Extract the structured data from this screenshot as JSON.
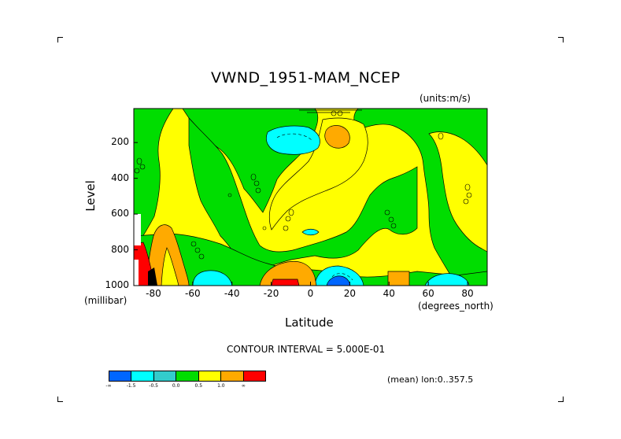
{
  "chart_data": {
    "type": "heatmap",
    "title": "VWND_1951-MAM_NCEP",
    "units": "(units:m/s)",
    "xlabel": "Latitude",
    "x_unit": "(degrees_north)",
    "ylabel": "Level",
    "y_unit": "(millibar)",
    "xlim": [
      -90,
      90
    ],
    "ylim": [
      1000,
      10
    ],
    "x_ticks": [
      "-80",
      "-60",
      "-40",
      "-20",
      "0",
      "20",
      "40",
      "60",
      "80"
    ],
    "x_tick_values": [
      -80,
      -60,
      -40,
      -20,
      0,
      20,
      40,
      60,
      80
    ],
    "y_ticks": [
      "200",
      "400",
      "600",
      "800",
      "1000"
    ],
    "y_tick_values": [
      200,
      400,
      600,
      800,
      1000
    ],
    "contour_interval_text": "CONTOUR INTERVAL = 5.000E-01",
    "mean_text": "(mean) lon:0..357.5",
    "colorbar": {
      "colors": [
        "#0066ff",
        "#00ffff",
        "#33cccc",
        "#00dd00",
        "#ffff00",
        "#ffaa00",
        "#ff0000"
      ],
      "labels": [
        "-∞",
        "-1.5",
        "-0.5",
        "0.0",
        "0.5",
        "1.0",
        "∞"
      ]
    },
    "regions": [
      {
        "level": "negative_strong",
        "lat": [
          -58,
          -46
        ],
        "p": [
          1000,
          940
        ],
        "value": -1.5
      },
      {
        "level": "negative_strong",
        "lat": [
          8,
          28
        ],
        "p": [
          1000,
          930
        ],
        "value": -1.5
      },
      {
        "level": "negative_weak",
        "lat": [
          -26,
          -6
        ],
        "p": [
          230,
          110
        ],
        "value": -0.75
      },
      {
        "level": "negative_weak",
        "lat": [
          56,
          76
        ],
        "p": [
          1000,
          950
        ],
        "value": -0.75
      },
      {
        "level": "positive",
        "lat": [
          -34,
          0
        ],
        "p": [
          1000,
          850
        ],
        "value": 1.0
      },
      {
        "level": "positive",
        "lat": [
          8,
          18
        ],
        "p": [
          230,
          140
        ],
        "value": 1.0
      },
      {
        "level": "positive",
        "lat": [
          38,
          50
        ],
        "p": [
          1000,
          900
        ],
        "value": 1.0
      },
      {
        "level": "positive_strong",
        "lat": [
          -84,
          -76
        ],
        "p": [
          1000,
          820
        ],
        "value": 2.0
      },
      {
        "level": "positive_strong",
        "lat": [
          -15,
          -5
        ],
        "p": [
          1000,
          960
        ],
        "value": 2.0
      }
    ]
  }
}
